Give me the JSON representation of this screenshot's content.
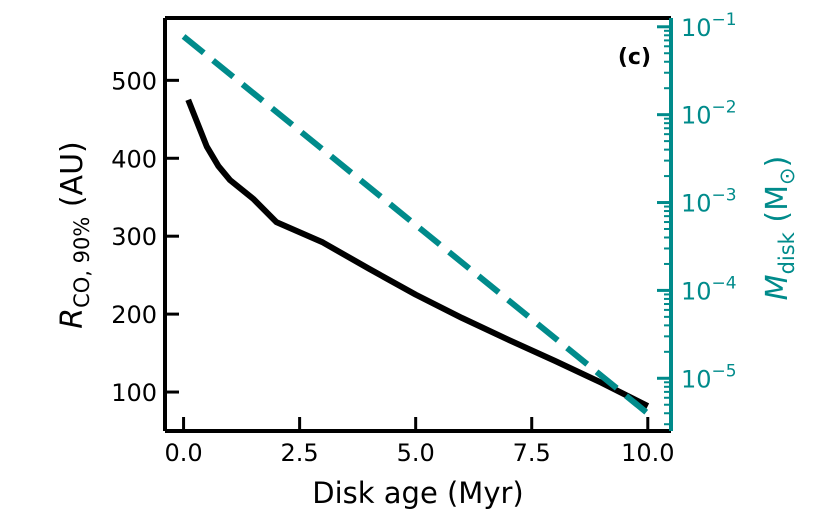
{
  "chart_data": {
    "type": "line",
    "panel_label": "(c)",
    "xlabel": "Disk age (Myr)",
    "ylabel_left": {
      "symbol": "R",
      "subscript": "CO, 90%",
      "unit": " (AU)"
    },
    "ylabel_right": {
      "symbol": "M",
      "subscript": "disk",
      "unit_open": " (M",
      "unit_sub": "⊙",
      "unit_close": ")"
    },
    "xlim": [
      -0.4,
      10.5
    ],
    "ylim_left": [
      50,
      580
    ],
    "ylim_right_log": [
      -5.6,
      -0.9
    ],
    "x_ticks": [
      {
        "value": 0.0,
        "label": "0.0"
      },
      {
        "value": 2.5,
        "label": "2.5"
      },
      {
        "value": 5.0,
        "label": "5.0"
      },
      {
        "value": 7.5,
        "label": "7.5"
      },
      {
        "value": 10.0,
        "label": "10.0"
      }
    ],
    "y_ticks_left": [
      {
        "value": 100,
        "label": "100"
      },
      {
        "value": 200,
        "label": "200"
      },
      {
        "value": 300,
        "label": "300"
      },
      {
        "value": 400,
        "label": "400"
      },
      {
        "value": 500,
        "label": "500"
      }
    ],
    "y_ticks_right": [
      {
        "exp": -5,
        "base": "10",
        "sup": "−5"
      },
      {
        "exp": -4,
        "base": "10",
        "sup": "−4"
      },
      {
        "exp": -3,
        "base": "10",
        "sup": "−3"
      },
      {
        "exp": -2,
        "base": "10",
        "sup": "−2"
      },
      {
        "exp": -1,
        "base": "10",
        "sup": "−1"
      }
    ],
    "series": [
      {
        "axis": "left",
        "color": "#000000",
        "style": "solid",
        "x": [
          0.1,
          0.3,
          0.5,
          0.75,
          1.0,
          1.5,
          2.0,
          3.0,
          4.0,
          5.0,
          6.0,
          7.0,
          8.0,
          9.0,
          10.0
        ],
        "y": [
          475,
          445,
          415,
          390,
          372,
          348,
          318,
          292,
          258,
          225,
          195,
          167,
          140,
          112,
          82
        ]
      },
      {
        "axis": "right",
        "color": "#008b8b",
        "style": "dashed",
        "x": [
          0.0,
          10.0
        ],
        "log_y": [
          -1.11,
          -5.4
        ]
      }
    ],
    "colors": {
      "left_axis": "#000000",
      "right_axis": "#008b8b"
    }
  }
}
